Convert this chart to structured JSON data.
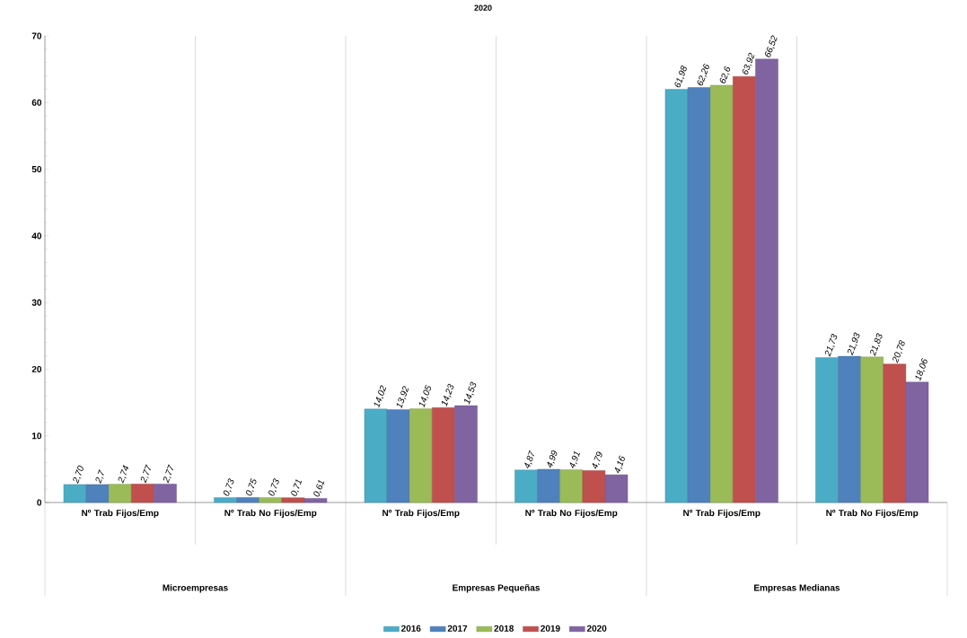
{
  "chart_data": {
    "type": "bar",
    "title": "2020",
    "categories": [
      "Nº Trab Fijos/Emp",
      "Nº Trab No Fijos/Emp",
      "Nº Trab Fijos/Emp",
      "Nº Trab No Fijos/Emp",
      "Nº Trab Fijos/Emp",
      "Nº Trab No Fijos/Emp"
    ],
    "annotations": [
      "Microempresas",
      "Empresas Pequeñas",
      "Empresas Medianas"
    ],
    "series": [
      {
        "name": "2016",
        "color": "#4bacc6",
        "values": [
          2.7,
          0.73,
          14.02,
          4.87,
          61.98,
          21.73
        ],
        "value_labels": [
          "2,70",
          "0,73",
          "14,02",
          "4,87",
          "61,98",
          "21,73"
        ]
      },
      {
        "name": "2017",
        "color": "#4f81bd",
        "values": [
          2.7,
          0.75,
          13.92,
          4.99,
          62.26,
          21.93
        ],
        "value_labels": [
          "2,7",
          "0,75",
          "13,92",
          "4,99",
          "62,26",
          "21,93"
        ]
      },
      {
        "name": "2018",
        "color": "#9bbb59",
        "values": [
          2.74,
          0.73,
          14.05,
          4.91,
          62.6,
          21.83
        ],
        "value_labels": [
          "2,74",
          "0,73",
          "14,05",
          "4,91",
          "62,6",
          "21,83"
        ]
      },
      {
        "name": "2019",
        "color": "#c0504d",
        "values": [
          2.77,
          0.71,
          14.23,
          4.79,
          63.92,
          20.78
        ],
        "value_labels": [
          "2,77",
          "0,71",
          "14,23",
          "4,79",
          "63,92",
          "20,78"
        ]
      },
      {
        "name": "2020",
        "color": "#8064a2",
        "values": [
          2.77,
          0.61,
          14.53,
          4.16,
          66.52,
          18.06
        ],
        "value_labels": [
          "2,77",
          "0,61",
          "14,53",
          "4,16",
          "66,52",
          "18,06"
        ]
      }
    ],
    "ylim": [
      0,
      70
    ],
    "yticks": [
      0,
      10,
      20,
      30,
      40,
      50,
      60,
      70
    ],
    "grid": "x",
    "legend": "bottom"
  }
}
